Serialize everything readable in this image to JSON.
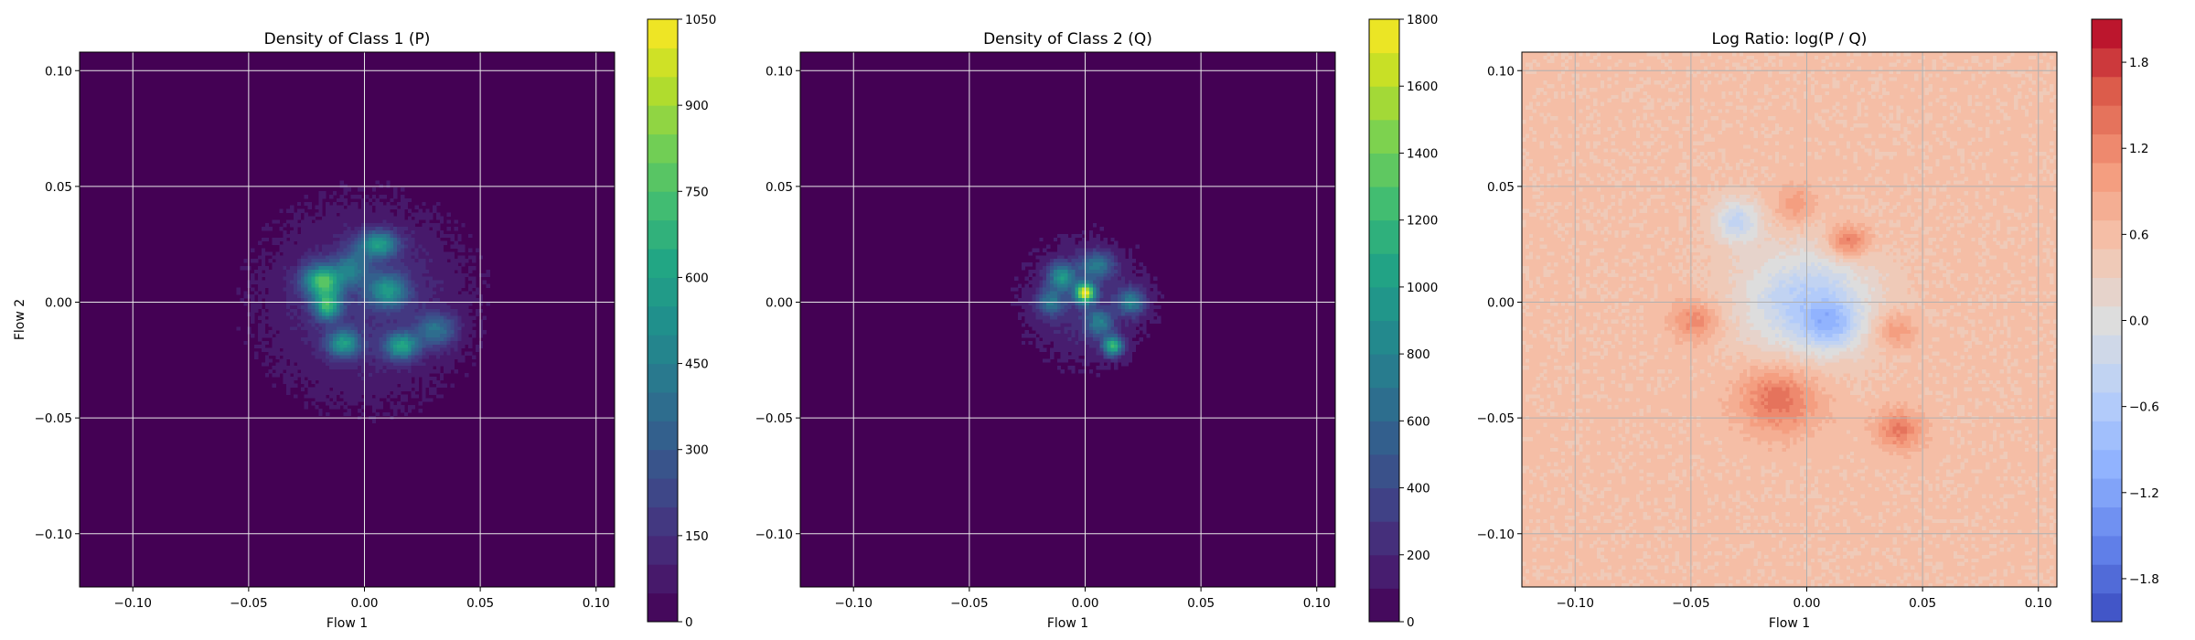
{
  "chart_data": [
    {
      "type": "heatmap",
      "title": "Density of Class 1 (P)",
      "xlabel": "Flow 1",
      "ylabel": "Flow 2",
      "xlim": [
        -0.123,
        0.108
      ],
      "ylim": [
        -0.123,
        0.108
      ],
      "xticks": [
        "−0.10",
        "−0.05",
        "0.00",
        "0.05",
        "0.10"
      ],
      "xtick_values": [
        -0.1,
        -0.05,
        0.0,
        0.05,
        0.1
      ],
      "yticks": [
        "−0.10",
        "−0.05",
        "0.00",
        "0.05",
        "0.10"
      ],
      "ytick_values": [
        -0.1,
        -0.05,
        0.0,
        0.05,
        0.1
      ],
      "grid": true,
      "colormap": "viridis",
      "colorbar": {
        "range": [
          0,
          1050
        ],
        "levels": 21,
        "ticks": [
          "0",
          "150",
          "300",
          "450",
          "600",
          "750",
          "900",
          "1050"
        ],
        "tick_values": [
          0,
          150,
          300,
          450,
          600,
          750,
          900,
          1050
        ]
      },
      "background_color": "#440154",
      "blobs": [
        {
          "x": 0.0,
          "y": 0.0,
          "sx": 0.032,
          "sy": 0.03,
          "peak": 150
        },
        {
          "x": -0.018,
          "y": 0.009,
          "sx": 0.006,
          "sy": 0.005,
          "peak": 650
        },
        {
          "x": -0.016,
          "y": -0.002,
          "sx": 0.004,
          "sy": 0.004,
          "peak": 550
        },
        {
          "x": 0.006,
          "y": 0.025,
          "sx": 0.006,
          "sy": 0.004,
          "peak": 500
        },
        {
          "x": 0.01,
          "y": 0.005,
          "sx": 0.006,
          "sy": 0.005,
          "peak": 450
        },
        {
          "x": -0.009,
          "y": -0.018,
          "sx": 0.005,
          "sy": 0.004,
          "peak": 480
        },
        {
          "x": 0.016,
          "y": -0.019,
          "sx": 0.005,
          "sy": 0.004,
          "peak": 520
        },
        {
          "x": 0.031,
          "y": -0.012,
          "sx": 0.006,
          "sy": 0.005,
          "peak": 330
        },
        {
          "x": -0.005,
          "y": 0.015,
          "sx": 0.005,
          "sy": 0.005,
          "peak": 300
        }
      ]
    },
    {
      "type": "heatmap",
      "title": "Density of Class 2 (Q)",
      "xlabel": "Flow 1",
      "ylabel": "",
      "xlim": [
        -0.123,
        0.108
      ],
      "ylim": [
        -0.123,
        0.108
      ],
      "xticks": [
        "−0.10",
        "−0.05",
        "0.00",
        "0.05",
        "0.10"
      ],
      "xtick_values": [
        -0.1,
        -0.05,
        0.0,
        0.05,
        0.1
      ],
      "yticks": [
        "−0.10",
        "−0.05",
        "0.00",
        "0.05",
        "0.10"
      ],
      "ytick_values": [
        -0.1,
        -0.05,
        0.0,
        0.05,
        0.1
      ],
      "grid": true,
      "colormap": "viridis",
      "colorbar": {
        "range": [
          0,
          1800
        ],
        "levels": 18,
        "ticks": [
          "0",
          "200",
          "400",
          "600",
          "800",
          "1000",
          "1200",
          "1400",
          "1600",
          "1800"
        ],
        "tick_values": [
          0,
          200,
          400,
          600,
          800,
          1000,
          1200,
          1400,
          1600,
          1800
        ]
      },
      "background_color": "#440154",
      "blobs": [
        {
          "x": 0.0,
          "y": 0.0,
          "sx": 0.02,
          "sy": 0.02,
          "peak": 250
        },
        {
          "x": 0.0,
          "y": 0.004,
          "sx": 0.003,
          "sy": 0.003,
          "peak": 1550
        },
        {
          "x": 0.012,
          "y": -0.019,
          "sx": 0.003,
          "sy": 0.003,
          "peak": 1100
        },
        {
          "x": -0.01,
          "y": 0.011,
          "sx": 0.004,
          "sy": 0.004,
          "peak": 800
        },
        {
          "x": 0.005,
          "y": 0.016,
          "sx": 0.005,
          "sy": 0.004,
          "peak": 600
        },
        {
          "x": 0.02,
          "y": 0.0,
          "sx": 0.004,
          "sy": 0.004,
          "peak": 650
        },
        {
          "x": -0.015,
          "y": 0.0,
          "sx": 0.004,
          "sy": 0.004,
          "peak": 550
        },
        {
          "x": 0.006,
          "y": -0.009,
          "sx": 0.004,
          "sy": 0.004,
          "peak": 600
        }
      ]
    },
    {
      "type": "heatmap",
      "title": "Log Ratio: log(P / Q)",
      "xlabel": "Flow 1",
      "ylabel": "",
      "xlim": [
        -0.123,
        0.108
      ],
      "ylim": [
        -0.123,
        0.108
      ],
      "xticks": [
        "−0.10",
        "−0.05",
        "0.00",
        "0.05",
        "0.10"
      ],
      "xtick_values": [
        -0.1,
        -0.05,
        0.0,
        0.05,
        0.1
      ],
      "yticks": [
        "−0.10",
        "−0.05",
        "0.00",
        "0.05",
        "0.10"
      ],
      "ytick_values": [
        -0.1,
        -0.05,
        0.0,
        0.05,
        0.1
      ],
      "grid": true,
      "colormap": "coolwarm",
      "colorbar": {
        "range": [
          -2.1,
          2.1
        ],
        "levels": 21,
        "ticks": [
          "−1.8",
          "−1.2",
          "−0.6",
          "0.0",
          "0.6",
          "1.2",
          "1.8"
        ],
        "tick_values": [
          -1.8,
          -1.2,
          -0.6,
          0.0,
          0.6,
          1.2,
          1.8
        ]
      },
      "background_value": 0.55,
      "blobs": [
        {
          "x": 0.0,
          "y": 0.0,
          "sx": 0.02,
          "sy": 0.016,
          "peak": -1.1
        },
        {
          "x": -0.03,
          "y": 0.035,
          "sx": 0.007,
          "sy": 0.007,
          "peak": -0.9
        },
        {
          "x": 0.01,
          "y": -0.01,
          "sx": 0.008,
          "sy": 0.007,
          "peak": -0.8
        },
        {
          "x": -0.012,
          "y": -0.042,
          "sx": 0.012,
          "sy": 0.01,
          "peak": 0.9
        },
        {
          "x": 0.04,
          "y": -0.055,
          "sx": 0.007,
          "sy": 0.006,
          "peak": 0.8
        },
        {
          "x": 0.018,
          "y": 0.026,
          "sx": 0.006,
          "sy": 0.005,
          "peak": 0.9
        },
        {
          "x": -0.048,
          "y": -0.008,
          "sx": 0.007,
          "sy": 0.006,
          "peak": 0.7
        },
        {
          "x": 0.038,
          "y": -0.012,
          "sx": 0.006,
          "sy": 0.005,
          "peak": 0.6
        },
        {
          "x": -0.005,
          "y": 0.042,
          "sx": 0.006,
          "sy": 0.006,
          "peak": 0.5
        }
      ]
    }
  ]
}
